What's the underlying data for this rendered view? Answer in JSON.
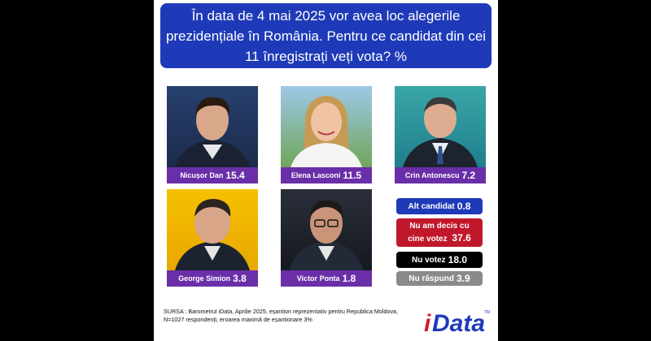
{
  "title": "În data de 4 mai 2025 vor avea loc alegerile prezidențiale în România. Pentru ce candidat din cei 11 înregistrați veți vota? %",
  "chart_data": {
    "type": "bar",
    "categories": [
      "Nicușor Dan",
      "Elena Lasconi",
      "Crin Antonescu",
      "George Simion",
      "Victor Ponta",
      "Alt candidat",
      "Nu am decis cu cine votez",
      "Nu votez",
      "Nu răspund"
    ],
    "values": [
      15.4,
      11.5,
      7.2,
      3.8,
      1.8,
      0.8,
      37.6,
      18.0,
      3.9
    ],
    "value_labels": [
      "15.4",
      "11.5",
      "7.2",
      "3.8",
      "1.8",
      "0.8",
      "37.6",
      "18.0",
      "3.9"
    ]
  },
  "candidates": [
    {
      "name": "Nicușor Dan",
      "value": "15.4"
    },
    {
      "name": "Elena Lasconi",
      "value": "11.5"
    },
    {
      "name": "Crin Antonescu",
      "value": "7.2"
    },
    {
      "name": "George Simion",
      "value": "3.8"
    },
    {
      "name": "Victor Ponta",
      "value": "1.8"
    }
  ],
  "others": [
    {
      "name": "Alt candidat",
      "value": "0.8",
      "color": "#1f3ab8"
    },
    {
      "name_line1": "Nu am decis cu",
      "name_line2": "cine votez",
      "value": "37.6",
      "color": "#c0182a"
    },
    {
      "name": "Nu votez",
      "value": "18.0",
      "color": "#000000"
    },
    {
      "name": "Nu răspund",
      "value": "3.9",
      "color": "#8a8a8a"
    }
  ],
  "colors": {
    "title_bg": "#1f3ab8",
    "label_bg": "#6a2fa8",
    "logo_red": "#d8192a",
    "logo_blue": "#1f3ab8"
  },
  "source": "SURSA : Barometrul iData, Aprilie 2025, eșantion reprezentativ pentru Republica Moldova, N=1027 respondenți, eroarea maximă de eșantionare 3%",
  "logo": {
    "text": "iData",
    "tm": "TM"
  }
}
